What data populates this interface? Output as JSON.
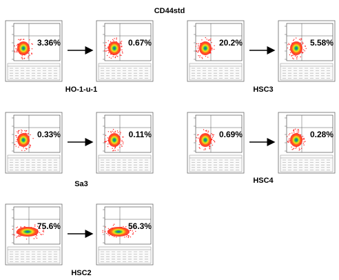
{
  "title": "CD44std",
  "groups": [
    {
      "label": "HO-1-u-1",
      "before": "3.36%",
      "after": "0.67%"
    },
    {
      "label": "HSC3",
      "before": "20.2%",
      "after": "5.58%"
    },
    {
      "label": "Sa3",
      "before": "0.33%",
      "after": "0.11%"
    },
    {
      "label": "HSC4",
      "before": "0.69%",
      "after": "0.28%"
    },
    {
      "label": "HSC2",
      "before": "75.6%",
      "after": "56.3%"
    }
  ]
}
